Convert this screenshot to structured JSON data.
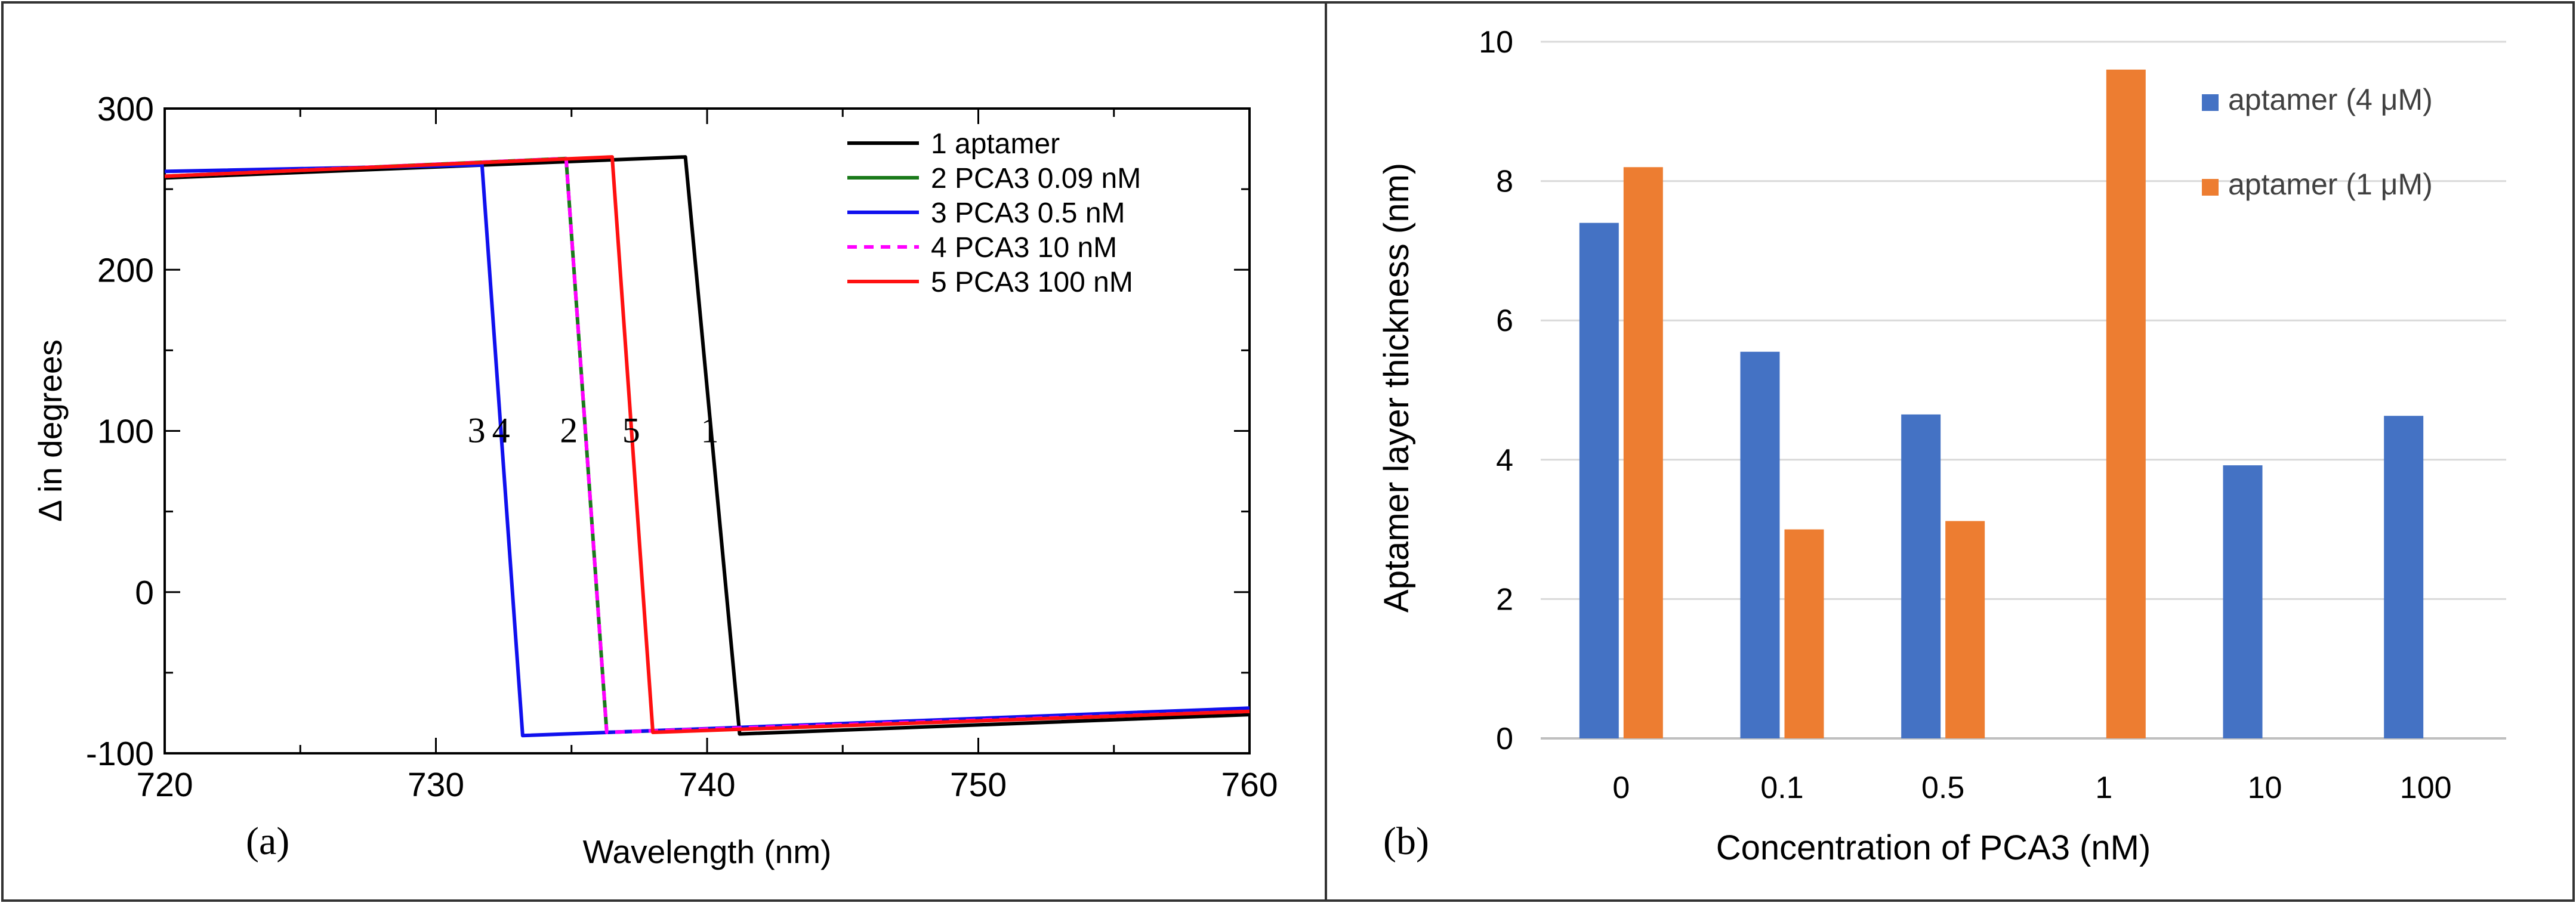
{
  "chart_data": [
    {
      "panel_label": "(a)",
      "type": "line",
      "xlabel": "Wavelength (nm)",
      "ylabel": "Δ in degrees",
      "xlim": [
        720,
        760
      ],
      "ylim": [
        -100,
        300
      ],
      "x_ticks": [
        "720",
        "730",
        "740",
        "750",
        "760"
      ],
      "y_ticks": [
        "-100",
        "0",
        "100",
        "200",
        "300"
      ],
      "grid": false,
      "legend_position": "top-right",
      "series": [
        {
          "name": "1 aptamer",
          "color": "#000000",
          "dashed": false,
          "points": [
            [
              720,
              257
            ],
            [
              739.2,
              270
            ],
            [
              741.2,
              -88
            ],
            [
              760,
              -76
            ]
          ]
        },
        {
          "name": "2 PCA3 0.09 nM",
          "color": "#1a7a1a",
          "dashed": false,
          "points": [
            [
              720,
              258
            ],
            [
              734.8,
              269
            ],
            [
              736.3,
              -87
            ],
            [
              760,
              -74
            ]
          ]
        },
        {
          "name": "3 PCA3 0.5 nM",
          "color": "#1010ee",
          "dashed": false,
          "points": [
            [
              720,
              261
            ],
            [
              731.7,
              265
            ],
            [
              733.2,
              -89
            ],
            [
              760,
              -72
            ]
          ]
        },
        {
          "name": "4 PCA3 10 nM",
          "color": "#ff00ff",
          "dashed": true,
          "points": [
            [
              720,
              258
            ],
            [
              734.8,
              269
            ],
            [
              736.3,
              -87
            ],
            [
              760,
              -74
            ]
          ]
        },
        {
          "name": "5 PCA3 100 nM",
          "color": "#ff1010",
          "dashed": false,
          "points": [
            [
              720,
              258
            ],
            [
              736.5,
              270
            ],
            [
              738.0,
              -87
            ],
            [
              760,
              -74
            ]
          ]
        }
      ],
      "annotations": [
        {
          "text": "3",
          "x": 731.5,
          "y": 93
        },
        {
          "text": "4",
          "x": 732.4,
          "y": 93
        },
        {
          "text": "2",
          "x": 734.9,
          "y": 93
        },
        {
          "text": "5",
          "x": 737.2,
          "y": 93
        },
        {
          "text": "1",
          "x": 740.1,
          "y": 93
        }
      ]
    },
    {
      "panel_label": "(b)",
      "type": "bar",
      "xlabel": "Concentration of PCA3 (nM)",
      "ylabel": "Aptamer layer thickness  (nm)",
      "ylim": [
        0,
        10
      ],
      "y_ticks": [
        "0",
        "2",
        "4",
        "6",
        "8",
        "10"
      ],
      "grid": true,
      "legend_position": "top-right",
      "categories": [
        "0",
        "0.1",
        "0.5",
        "1",
        "10",
        "100"
      ],
      "series": [
        {
          "name": "aptamer (4 μM)",
          "color": "#4472c4",
          "values": [
            7.4,
            5.55,
            4.65,
            null,
            3.92,
            4.63
          ]
        },
        {
          "name": "aptamer (1 μM)",
          "color": "#ed7d31",
          "values": [
            8.2,
            3.0,
            3.12,
            9.6,
            null,
            null
          ]
        }
      ]
    }
  ]
}
